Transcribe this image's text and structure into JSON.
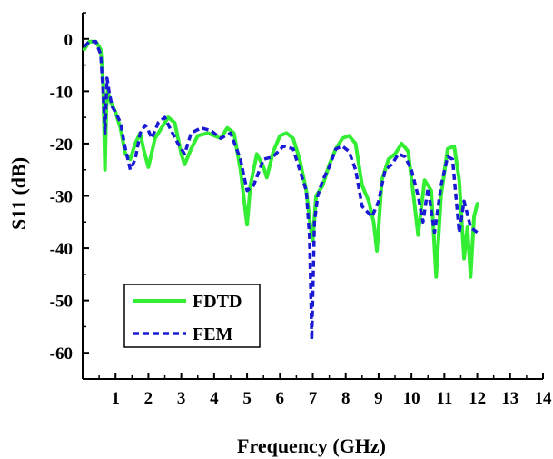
{
  "chart_data": {
    "type": "line",
    "xlabel": "Frequency (GHz)",
    "ylabel": "S11 (dB)",
    "xlim": [
      0,
      14
    ],
    "ylim": [
      -65,
      5
    ],
    "xticks": [
      1,
      2,
      3,
      4,
      5,
      6,
      7,
      8,
      9,
      10,
      11,
      12,
      13,
      14
    ],
    "yticks": [
      0,
      -10,
      -20,
      -30,
      -40,
      -50,
      -60
    ],
    "grid": false,
    "legend_position": "bottom-left",
    "series": [
      {
        "name": "FDTD",
        "color": "#33ee33",
        "style": "solid",
        "x": [
          0.05,
          0.2,
          0.4,
          0.55,
          0.62,
          0.68,
          0.72,
          0.76,
          0.85,
          1.0,
          1.15,
          1.3,
          1.45,
          1.6,
          1.75,
          1.85,
          2.0,
          2.2,
          2.4,
          2.6,
          2.8,
          3.0,
          3.1,
          3.3,
          3.5,
          3.8,
          4.0,
          4.2,
          4.4,
          4.6,
          4.8,
          4.95,
          5.0,
          5.1,
          5.3,
          5.5,
          5.6,
          5.8,
          6.0,
          6.2,
          6.4,
          6.6,
          6.8,
          6.95,
          7.0,
          7.1,
          7.3,
          7.5,
          7.7,
          7.9,
          8.1,
          8.3,
          8.5,
          8.7,
          8.85,
          8.95,
          9.1,
          9.3,
          9.5,
          9.7,
          9.9,
          10.1,
          10.2,
          10.4,
          10.6,
          10.75,
          10.9,
          11.1,
          11.3,
          11.45,
          11.6,
          11.7,
          11.8,
          11.9,
          12.0
        ],
        "y": [
          -2,
          -0.5,
          -0.5,
          -2,
          -8,
          -25,
          -13,
          -10,
          -12,
          -14,
          -17,
          -22,
          -23,
          -20,
          -18,
          -21,
          -24.5,
          -19,
          -17,
          -15,
          -16,
          -22,
          -24,
          -21,
          -18.5,
          -18,
          -18.5,
          -19,
          -17,
          -18,
          -25,
          -33,
          -35.5,
          -28,
          -22,
          -24.5,
          -26.5,
          -21.5,
          -18.5,
          -18,
          -19,
          -23,
          -29,
          -37,
          -38.5,
          -30,
          -28,
          -24,
          -21,
          -19,
          -18.5,
          -20,
          -28,
          -31,
          -35,
          -40.5,
          -27,
          -23,
          -22,
          -20,
          -21.5,
          -32,
          -37.5,
          -27,
          -29,
          -45.5,
          -30,
          -21,
          -20.5,
          -27,
          -42,
          -36,
          -45.5,
          -34,
          -31.5
        ]
      },
      {
        "name": "FEM",
        "color": "#1a1ad4",
        "style": "dashed",
        "x": [
          0.05,
          0.2,
          0.4,
          0.55,
          0.62,
          0.68,
          0.74,
          0.8,
          0.9,
          1.0,
          1.15,
          1.3,
          1.45,
          1.6,
          1.75,
          1.9,
          2.0,
          2.1,
          2.3,
          2.5,
          2.65,
          2.9,
          3.1,
          3.3,
          3.6,
          3.9,
          4.2,
          4.5,
          4.8,
          5.0,
          5.2,
          5.5,
          5.8,
          6.1,
          6.4,
          6.65,
          6.8,
          6.9,
          6.97,
          7.05,
          7.15,
          7.3,
          7.5,
          7.7,
          7.9,
          8.1,
          8.3,
          8.5,
          8.8,
          9.0,
          9.2,
          9.4,
          9.6,
          9.8,
          10.0,
          10.2,
          10.35,
          10.5,
          10.7,
          10.9,
          11.1,
          11.25,
          11.45,
          11.6,
          11.8,
          12.0
        ],
        "y": [
          -1.5,
          -0.5,
          -0.5,
          -3,
          -10,
          -18,
          -7.5,
          -10,
          -13,
          -14,
          -16,
          -21,
          -25,
          -23,
          -18,
          -16.5,
          -17.5,
          -19,
          -16,
          -15,
          -17,
          -20,
          -22,
          -18,
          -17,
          -17.5,
          -19,
          -18,
          -23,
          -29,
          -28,
          -23,
          -22.5,
          -20.5,
          -21,
          -26,
          -29,
          -38,
          -57.5,
          -35,
          -30,
          -27,
          -24.5,
          -21,
          -20.5,
          -21.5,
          -25,
          -32,
          -34,
          -31,
          -25,
          -24,
          -22,
          -22.5,
          -25,
          -30,
          -35,
          -28.5,
          -37,
          -28,
          -22.5,
          -23,
          -37,
          -31,
          -36,
          -37
        ]
      }
    ]
  }
}
